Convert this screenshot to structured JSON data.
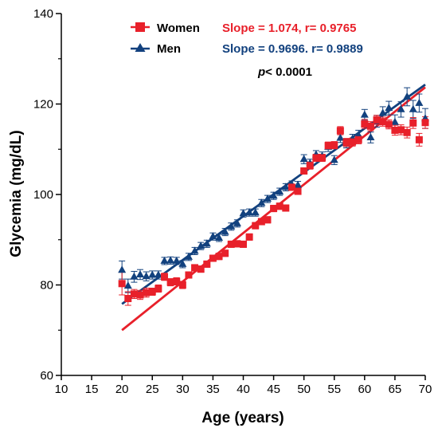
{
  "chart_data": {
    "type": "scatter",
    "xlabel": "Age (years)",
    "ylabel": "Glycemia (mg/dL)",
    "xlim": [
      10,
      70
    ],
    "ylim": [
      60,
      140
    ],
    "xticks": [
      10,
      15,
      20,
      25,
      30,
      35,
      40,
      45,
      50,
      55,
      60,
      65,
      70
    ],
    "yticks": [
      60,
      80,
      100,
      120,
      140
    ],
    "grid": false,
    "legend_position": "top-center",
    "annotation": {
      "italic": "p",
      "rest": "< 0.0001"
    },
    "series": [
      {
        "name": "Women",
        "color": "#e8202a",
        "marker": "square",
        "annotation": "Slope = 1.074, r= 0.9765",
        "fit_line": [
          [
            20,
            70.0
          ],
          [
            70,
            123.7
          ]
        ],
        "x": [
          20,
          21,
          22,
          23,
          24,
          25,
          26,
          27,
          28,
          29,
          30,
          31,
          32,
          33,
          34,
          35,
          36,
          37,
          38,
          39,
          40,
          41,
          42,
          43,
          44,
          45,
          46,
          47,
          48,
          49,
          50,
          51,
          52,
          53,
          54,
          55,
          56,
          57,
          58,
          59,
          60,
          61,
          62,
          63,
          64,
          65,
          66,
          67,
          68,
          69,
          70
        ],
        "y": [
          80.3,
          77.0,
          78.0,
          77.8,
          78.3,
          78.5,
          79.2,
          81.8,
          80.6,
          80.8,
          80.0,
          82.2,
          83.8,
          83.5,
          84.6,
          85.9,
          86.3,
          87.0,
          89.0,
          89.1,
          89.0,
          90.6,
          93.1,
          94.0,
          94.4,
          96.9,
          97.4,
          97.0,
          101.6,
          100.7,
          105.2,
          106.4,
          108.1,
          108.1,
          110.8,
          110.9,
          114.1,
          111.5,
          111.6,
          112.1,
          115.6,
          115.1,
          116.5,
          116.1,
          115.5,
          114.2,
          114.3,
          113.7,
          115.8,
          112.1,
          115.9
        ],
        "error": [
          2.5,
          1.5,
          1.0,
          1.0,
          1.0,
          0.8,
          0.8,
          0.8,
          0.8,
          0.8,
          0.8,
          0.7,
          0.7,
          0.7,
          0.7,
          0.7,
          0.7,
          0.7,
          0.7,
          0.7,
          0.7,
          0.7,
          0.7,
          0.7,
          0.7,
          0.7,
          0.7,
          0.7,
          0.7,
          0.7,
          0.7,
          0.8,
          0.8,
          0.8,
          0.8,
          0.8,
          0.9,
          0.9,
          0.9,
          0.9,
          1.0,
          1.0,
          1.0,
          1.0,
          1.0,
          1.1,
          1.1,
          1.2,
          1.2,
          1.4,
          1.3
        ]
      },
      {
        "name": "Men",
        "color": "#12417e",
        "marker": "triangle",
        "annotation": "Slope = 0.9696. r= 0.9889",
        "fit_line": [
          [
            20,
            75.8
          ],
          [
            70,
            124.3
          ]
        ],
        "x": [
          20,
          21,
          22,
          23,
          24,
          25,
          26,
          27,
          28,
          29,
          30,
          31,
          32,
          33,
          34,
          35,
          36,
          37,
          38,
          39,
          40,
          41,
          42,
          43,
          44,
          45,
          46,
          47,
          48,
          49,
          50,
          51,
          52,
          53,
          54,
          55,
          56,
          57,
          58,
          59,
          60,
          61,
          62,
          63,
          64,
          65,
          66,
          67,
          68,
          69,
          70
        ],
        "y": [
          83.3,
          79.8,
          81.8,
          82.3,
          81.9,
          82.2,
          82.2,
          85.3,
          85.4,
          85.3,
          84.6,
          86.2,
          87.5,
          88.6,
          89.1,
          90.7,
          90.4,
          91.7,
          92.9,
          93.6,
          95.8,
          96.0,
          96.0,
          98.1,
          99.0,
          99.7,
          100.6,
          101.6,
          102.2,
          102.1,
          107.8,
          106.9,
          108.8,
          108.5,
          110.5,
          107.6,
          112.5,
          111.3,
          112.3,
          113.1,
          117.6,
          112.6,
          116.2,
          118.0,
          119.1,
          116.0,
          118.8,
          121.6,
          118.8,
          120.2,
          116.8
        ],
        "error": [
          2.0,
          1.5,
          1.2,
          1.1,
          1.0,
          0.9,
          0.9,
          0.8,
          0.8,
          0.8,
          0.8,
          0.8,
          0.8,
          0.8,
          0.8,
          0.8,
          0.8,
          0.8,
          0.8,
          0.8,
          0.8,
          0.8,
          0.8,
          0.8,
          0.8,
          0.8,
          0.8,
          0.8,
          0.8,
          0.8,
          1.0,
          0.9,
          0.9,
          0.9,
          1.0,
          1.0,
          1.0,
          1.0,
          1.0,
          1.1,
          1.2,
          1.2,
          1.3,
          1.4,
          1.5,
          1.6,
          1.7,
          2.0,
          2.0,
          2.0,
          2.2
        ]
      }
    ]
  }
}
